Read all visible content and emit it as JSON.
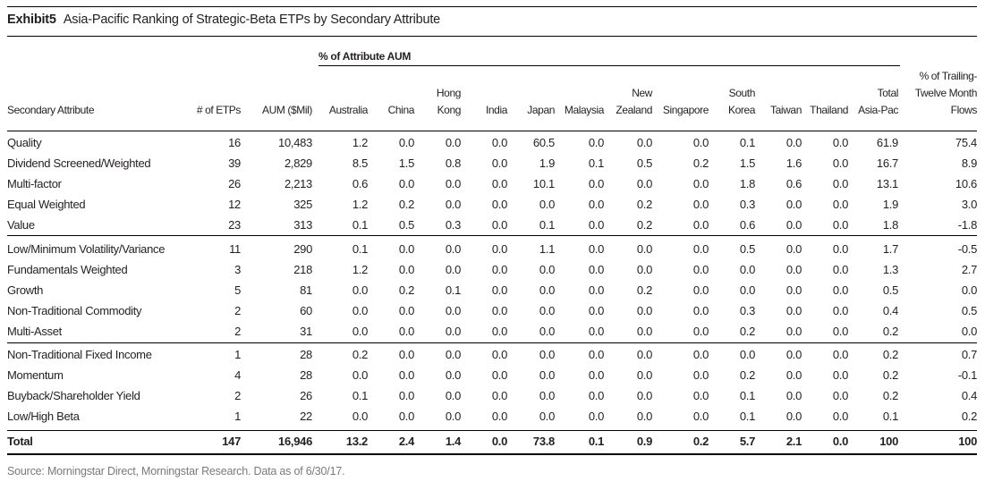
{
  "exhibit": {
    "label": "Exhibit5",
    "title": "Asia-Pacific Ranking of Strategic-Beta ETPs by Secondary Attribute"
  },
  "group_header": "% of Attribute AUM",
  "columns": [
    {
      "key": "attr",
      "lines": [
        "Secondary Attribute"
      ]
    },
    {
      "key": "etps",
      "lines": [
        "# of ETPs"
      ]
    },
    {
      "key": "aum",
      "lines": [
        "AUM ($Mil)"
      ]
    },
    {
      "key": "australia",
      "lines": [
        "Australia"
      ]
    },
    {
      "key": "china",
      "lines": [
        "China"
      ]
    },
    {
      "key": "hongkong",
      "lines": [
        "Hong",
        "Kong"
      ]
    },
    {
      "key": "india",
      "lines": [
        "India"
      ]
    },
    {
      "key": "japan",
      "lines": [
        "Japan"
      ]
    },
    {
      "key": "malaysia",
      "lines": [
        "Malaysia"
      ]
    },
    {
      "key": "newzealand",
      "lines": [
        "New",
        "Zealand"
      ]
    },
    {
      "key": "singapore",
      "lines": [
        "Singapore"
      ]
    },
    {
      "key": "southkorea",
      "lines": [
        "South",
        "Korea"
      ]
    },
    {
      "key": "taiwan",
      "lines": [
        "Taiwan"
      ]
    },
    {
      "key": "thailand",
      "lines": [
        "Thailand"
      ]
    },
    {
      "key": "totalap",
      "lines": [
        "Total",
        "Asia-Pac"
      ]
    },
    {
      "key": "flows",
      "lines": [
        "% of Trailing-",
        "Twelve Month",
        "Flows"
      ]
    }
  ],
  "rows": [
    [
      "Quality",
      "16",
      "10,483",
      "1.2",
      "0.0",
      "0.0",
      "0.0",
      "60.5",
      "0.0",
      "0.0",
      "0.0",
      "0.1",
      "0.0",
      "0.0",
      "61.9",
      "75.4"
    ],
    [
      "Dividend Screened/Weighted",
      "39",
      "2,829",
      "8.5",
      "1.5",
      "0.8",
      "0.0",
      "1.9",
      "0.1",
      "0.5",
      "0.2",
      "1.5",
      "1.6",
      "0.0",
      "16.7",
      "8.9"
    ],
    [
      "Multi-factor",
      "26",
      "2,213",
      "0.6",
      "0.0",
      "0.0",
      "0.0",
      "10.1",
      "0.0",
      "0.0",
      "0.0",
      "1.8",
      "0.6",
      "0.0",
      "13.1",
      "10.6"
    ],
    [
      "Equal Weighted",
      "12",
      "325",
      "1.2",
      "0.2",
      "0.0",
      "0.0",
      "0.0",
      "0.0",
      "0.2",
      "0.0",
      "0.3",
      "0.0",
      "0.0",
      "1.9",
      "3.0"
    ],
    [
      "Value",
      "23",
      "313",
      "0.1",
      "0.5",
      "0.3",
      "0.0",
      "0.1",
      "0.0",
      "0.2",
      "0.0",
      "0.6",
      "0.0",
      "0.0",
      "1.8",
      "-1.8"
    ],
    [
      "Low/Minimum Volatility/Variance",
      "11",
      "290",
      "0.1",
      "0.0",
      "0.0",
      "0.0",
      "1.1",
      "0.0",
      "0.0",
      "0.0",
      "0.5",
      "0.0",
      "0.0",
      "1.7",
      "-0.5"
    ],
    [
      "Fundamentals Weighted",
      "3",
      "218",
      "1.2",
      "0.0",
      "0.0",
      "0.0",
      "0.0",
      "0.0",
      "0.0",
      "0.0",
      "0.0",
      "0.0",
      "0.0",
      "1.3",
      "2.7"
    ],
    [
      "Growth",
      "5",
      "81",
      "0.0",
      "0.2",
      "0.1",
      "0.0",
      "0.0",
      "0.0",
      "0.2",
      "0.0",
      "0.0",
      "0.0",
      "0.0",
      "0.5",
      "0.0"
    ],
    [
      "Non-Traditional Commodity",
      "2",
      "60",
      "0.0",
      "0.0",
      "0.0",
      "0.0",
      "0.0",
      "0.0",
      "0.0",
      "0.0",
      "0.3",
      "0.0",
      "0.0",
      "0.4",
      "0.5"
    ],
    [
      "Multi-Asset",
      "2",
      "31",
      "0.0",
      "0.0",
      "0.0",
      "0.0",
      "0.0",
      "0.0",
      "0.0",
      "0.0",
      "0.2",
      "0.0",
      "0.0",
      "0.2",
      "0.0"
    ],
    [
      "Non-Traditional Fixed Income",
      "1",
      "28",
      "0.2",
      "0.0",
      "0.0",
      "0.0",
      "0.0",
      "0.0",
      "0.0",
      "0.0",
      "0.0",
      "0.0",
      "0.0",
      "0.2",
      "0.7"
    ],
    [
      "Momentum",
      "4",
      "28",
      "0.0",
      "0.0",
      "0.0",
      "0.0",
      "0.0",
      "0.0",
      "0.0",
      "0.0",
      "0.2",
      "0.0",
      "0.0",
      "0.2",
      "-0.1"
    ],
    [
      "Buyback/Shareholder Yield",
      "2",
      "26",
      "0.1",
      "0.0",
      "0.0",
      "0.0",
      "0.0",
      "0.0",
      "0.0",
      "0.0",
      "0.1",
      "0.0",
      "0.0",
      "0.2",
      "0.4"
    ],
    [
      "Low/High Beta",
      "1",
      "22",
      "0.0",
      "0.0",
      "0.0",
      "0.0",
      "0.0",
      "0.0",
      "0.0",
      "0.0",
      "0.1",
      "0.0",
      "0.0",
      "0.1",
      "0.2"
    ]
  ],
  "total": [
    "Total",
    "147",
    "16,946",
    "13.2",
    "2.4",
    "1.4",
    "0.0",
    "73.8",
    "0.1",
    "0.9",
    "0.2",
    "5.7",
    "2.1",
    "0.0",
    "100",
    "100"
  ],
  "source": "Source: Morningstar Direct, Morningstar Research. Data as of 6/30/17."
}
